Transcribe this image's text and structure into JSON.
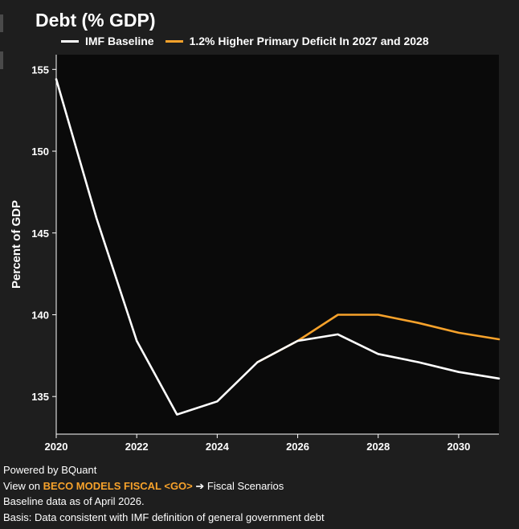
{
  "title": "Debt (% GDP)",
  "colors": {
    "background": "#1e1e1e",
    "plot_background": "#0a0a0a",
    "baseline": "#ffffff",
    "scenario": "#f7a22b"
  },
  "chart_data": {
    "type": "line",
    "ylabel": "Percent of GDP",
    "xlim": [
      2020,
      2031
    ],
    "ylim": [
      132.7,
      155.9
    ],
    "xticks": [
      "2020",
      "2022",
      "2024",
      "2026",
      "2028",
      "2030"
    ],
    "yticks": [
      "135",
      "140",
      "145",
      "150",
      "155"
    ],
    "legend_position": "top",
    "grid": false,
    "series": [
      {
        "name": "IMF Baseline",
        "color": "#ffffff",
        "x": [
          2020,
          2021,
          2022,
          2023,
          2024,
          2025,
          2026,
          2027,
          2028,
          2029,
          2030,
          2031
        ],
        "y": [
          154.4,
          145.9,
          138.4,
          133.9,
          134.7,
          137.1,
          138.4,
          138.8,
          137.6,
          137.1,
          136.5,
          136.1
        ]
      },
      {
        "name": "1.2% Higher Primary Deficit In 2027 and 2028",
        "color": "#f7a22b",
        "x": [
          2025,
          2026,
          2027,
          2028,
          2029,
          2030,
          2031
        ],
        "y": [
          137.1,
          138.4,
          140.0,
          140.0,
          139.5,
          138.9,
          138.5
        ]
      }
    ]
  },
  "footer": {
    "powered": "Powered by BQuant",
    "view_prefix": "View on ",
    "view_link": "BECO MODELS FISCAL <GO>",
    "view_suffix": " ➔ Fiscal Scenarios",
    "baseline_note": "Baseline data as of April 2026.",
    "basis": "Basis: Data consistent with IMF definition of general government debt"
  }
}
